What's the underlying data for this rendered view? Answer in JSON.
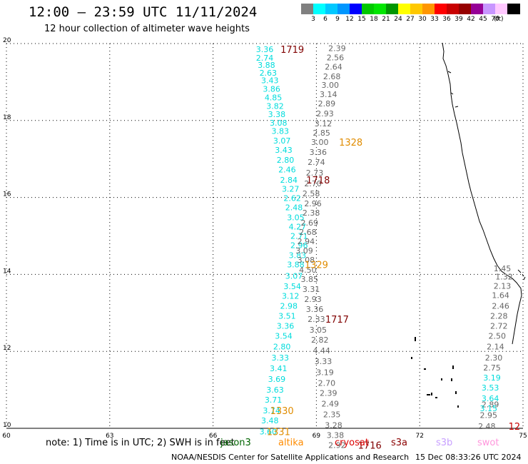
{
  "header": {
    "title": "12:00 – 23:59 UTC 11/11/2024",
    "subtitle": "12 hour collection of altimeter wave heights"
  },
  "legend": {
    "unit": "(ft)",
    "items": [
      {
        "label": "",
        "color": "#808080"
      },
      {
        "label": "3",
        "color": "#00ffff"
      },
      {
        "label": "6",
        "color": "#00c8ff"
      },
      {
        "label": "9",
        "color": "#0096ff"
      },
      {
        "label": "12",
        "color": "#0000ff"
      },
      {
        "label": "15",
        "color": "#00c800"
      },
      {
        "label": "18",
        "color": "#00e600"
      },
      {
        "label": "21",
        "color": "#009600"
      },
      {
        "label": "24",
        "color": "#ffff00"
      },
      {
        "label": "27",
        "color": "#ffc800"
      },
      {
        "label": "30",
        "color": "#ff9600"
      },
      {
        "label": "33",
        "color": "#ff0000"
      },
      {
        "label": "36",
        "color": "#c80000"
      },
      {
        "label": "39",
        "color": "#960000"
      },
      {
        "label": "42",
        "color": "#960096"
      },
      {
        "label": "45",
        "color": "#c896ff"
      },
      {
        "label": "70",
        "color": "#ffc8ff"
      },
      {
        "label": "",
        "color": "#000000"
      }
    ]
  },
  "footer": {
    "note": "note: 1) Time is in UTC; 2) SWH is in feet",
    "satellites": [
      {
        "name": "jason3",
        "color": "#006400"
      },
      {
        "name": "altika",
        "color": "#ff8c00"
      },
      {
        "name": "cryosat",
        "color": "#dc0000"
      },
      {
        "name": "s3a",
        "color": "#8b0000"
      },
      {
        "name": "s3b",
        "color": "#c8a0ff"
      },
      {
        "name": "swot",
        "color": "#ff96dc"
      }
    ],
    "credit": "NOAA/NESDIS Center for Satellite Applications and Research",
    "timestamp": "15 Dec 08:33:26 UTC 2024"
  },
  "chart_data": {
    "type": "scatter",
    "xlim": [
      60,
      75
    ],
    "ylim": [
      10,
      20
    ],
    "x_ticks": [
      "60",
      "63",
      "66",
      "69",
      "72",
      "75"
    ],
    "y_ticks": [
      "10",
      "12",
      "14",
      "16",
      "18",
      "20"
    ],
    "grid": true,
    "series": [
      {
        "track": "s3a",
        "color": "#00dcdc",
        "points": [
          {
            "x": 67.5,
            "y": 19.85,
            "v": "3.36"
          },
          {
            "x": 67.5,
            "y": 19.63,
            "v": "2.74"
          },
          {
            "x": 67.55,
            "y": 19.44,
            "v": "3.88"
          },
          {
            "x": 67.6,
            "y": 19.24,
            "v": "2.63"
          },
          {
            "x": 67.65,
            "y": 19.04,
            "v": "3.43"
          },
          {
            "x": 67.7,
            "y": 18.82,
            "v": "3.86"
          },
          {
            "x": 67.75,
            "y": 18.6,
            "v": "4.85"
          },
          {
            "x": 67.8,
            "y": 18.38,
            "v": "3.82"
          },
          {
            "x": 67.85,
            "y": 18.16,
            "v": "3.38"
          },
          {
            "x": 67.9,
            "y": 17.94,
            "v": "3.08"
          },
          {
            "x": 67.95,
            "y": 17.73,
            "v": "3.83"
          },
          {
            "x": 68.0,
            "y": 17.48,
            "v": "3.07"
          },
          {
            "x": 68.05,
            "y": 17.24,
            "v": "3.43"
          },
          {
            "x": 68.1,
            "y": 16.98,
            "v": "2.80"
          },
          {
            "x": 68.15,
            "y": 16.73,
            "v": "2.46"
          },
          {
            "x": 68.2,
            "y": 16.46,
            "v": "2.84"
          },
          {
            "x": 68.25,
            "y": 16.22,
            "v": "3.27"
          },
          {
            "x": 68.3,
            "y": 15.98,
            "v": "2.62"
          },
          {
            "x": 68.35,
            "y": 15.74,
            "v": "2.48"
          },
          {
            "x": 68.4,
            "y": 15.48,
            "v": "3.05"
          },
          {
            "x": 68.45,
            "y": 15.24,
            "v": "4.27"
          },
          {
            "x": 68.5,
            "y": 15.0,
            "v": "2.71"
          },
          {
            "x": 68.5,
            "y": 14.76,
            "v": "2.96"
          },
          {
            "x": 68.45,
            "y": 14.5,
            "v": "3.83"
          },
          {
            "x": 68.4,
            "y": 14.26,
            "v": "3.88"
          },
          {
            "x": 68.35,
            "y": 13.96,
            "v": "3.07"
          },
          {
            "x": 68.3,
            "y": 13.69,
            "v": "3.54"
          },
          {
            "x": 68.25,
            "y": 13.44,
            "v": "3.12"
          },
          {
            "x": 68.2,
            "y": 13.18,
            "v": "2.98"
          },
          {
            "x": 68.15,
            "y": 12.92,
            "v": "3.51"
          },
          {
            "x": 68.1,
            "y": 12.66,
            "v": "3.36"
          },
          {
            "x": 68.05,
            "y": 12.4,
            "v": "3.54"
          },
          {
            "x": 68.0,
            "y": 12.12,
            "v": "2.80"
          },
          {
            "x": 67.95,
            "y": 11.84,
            "v": "3.33"
          },
          {
            "x": 67.9,
            "y": 11.56,
            "v": "3.41"
          },
          {
            "x": 67.85,
            "y": 11.28,
            "v": "3.69"
          },
          {
            "x": 67.8,
            "y": 11.0,
            "v": "3.63"
          },
          {
            "x": 67.75,
            "y": 10.74,
            "v": "3.71"
          },
          {
            "x": 67.7,
            "y": 10.46,
            "v": "3.74"
          },
          {
            "x": 67.65,
            "y": 10.2,
            "v": "3.48"
          },
          {
            "x": 67.6,
            "y": 9.92,
            "v": "3.60"
          }
        ]
      },
      {
        "track": "s3a",
        "color": "#666666",
        "points": [
          {
            "x": 69.6,
            "y": 19.88,
            "v": "2.39"
          },
          {
            "x": 69.55,
            "y": 19.64,
            "v": "2.56"
          },
          {
            "x": 69.5,
            "y": 19.4,
            "v": "2.64"
          },
          {
            "x": 69.45,
            "y": 19.15,
            "v": "2.68"
          },
          {
            "x": 69.4,
            "y": 18.92,
            "v": "3.00"
          },
          {
            "x": 69.35,
            "y": 18.68,
            "v": "3.14"
          },
          {
            "x": 69.3,
            "y": 18.44,
            "v": "2.89"
          },
          {
            "x": 69.25,
            "y": 18.18,
            "v": "2.93"
          },
          {
            "x": 69.2,
            "y": 17.92,
            "v": "3.12"
          },
          {
            "x": 69.15,
            "y": 17.68,
            "v": "2.85"
          },
          {
            "x": 69.1,
            "y": 17.44,
            "v": "3.00"
          },
          {
            "x": 69.05,
            "y": 17.18,
            "v": "3.36"
          },
          {
            "x": 69.0,
            "y": 16.92,
            "v": "2.74"
          },
          {
            "x": 68.95,
            "y": 16.64,
            "v": "2.73"
          },
          {
            "x": 68.9,
            "y": 16.36,
            "v": "2.70"
          },
          {
            "x": 68.85,
            "y": 16.1,
            "v": "2.58"
          },
          {
            "x": 68.9,
            "y": 15.84,
            "v": "2.96"
          },
          {
            "x": 68.85,
            "y": 15.6,
            "v": "2.38"
          },
          {
            "x": 68.8,
            "y": 15.34,
            "v": "2.69"
          },
          {
            "x": 68.75,
            "y": 15.1,
            "v": "2.68"
          },
          {
            "x": 68.7,
            "y": 14.86,
            "v": "2.94"
          },
          {
            "x": 68.65,
            "y": 14.62,
            "v": "3.09"
          },
          {
            "x": 68.7,
            "y": 14.38,
            "v": "3.08"
          },
          {
            "x": 68.75,
            "y": 14.12,
            "v": "4.50"
          },
          {
            "x": 68.8,
            "y": 13.88,
            "v": "3.85"
          },
          {
            "x": 68.85,
            "y": 13.62,
            "v": "3.31"
          },
          {
            "x": 68.9,
            "y": 13.36,
            "v": "2.93"
          },
          {
            "x": 68.95,
            "y": 13.1,
            "v": "3.36"
          },
          {
            "x": 69.0,
            "y": 12.84,
            "v": "2.33"
          },
          {
            "x": 69.05,
            "y": 12.56,
            "v": "3.05"
          },
          {
            "x": 69.1,
            "y": 12.3,
            "v": "2.82"
          },
          {
            "x": 69.15,
            "y": 12.02,
            "v": "4.44"
          },
          {
            "x": 69.2,
            "y": 11.74,
            "v": "3.33"
          },
          {
            "x": 69.25,
            "y": 11.46,
            "v": "3.19"
          },
          {
            "x": 69.3,
            "y": 11.18,
            "v": "2.70"
          },
          {
            "x": 69.35,
            "y": 10.92,
            "v": "2.39"
          },
          {
            "x": 69.4,
            "y": 10.64,
            "v": "2.49"
          },
          {
            "x": 69.45,
            "y": 10.36,
            "v": "2.35"
          },
          {
            "x": 69.5,
            "y": 10.08,
            "v": "3.28"
          },
          {
            "x": 69.55,
            "y": 9.82,
            "v": "3.38"
          },
          {
            "x": 69.6,
            "y": 9.56,
            "v": "2.92"
          }
        ]
      },
      {
        "track": "east",
        "color": "#666666",
        "points": [
          {
            "x": 74.4,
            "y": 14.16,
            "v": "1.45"
          },
          {
            "x": 74.45,
            "y": 13.94,
            "v": "1.32"
          },
          {
            "x": 74.4,
            "y": 13.7,
            "v": "2.13"
          },
          {
            "x": 74.35,
            "y": 13.46,
            "v": "1.64"
          },
          {
            "x": 74.35,
            "y": 13.18,
            "v": "2.46"
          },
          {
            "x": 74.3,
            "y": 12.92,
            "v": "2.28"
          },
          {
            "x": 74.3,
            "y": 12.66,
            "v": "2.72"
          },
          {
            "x": 74.25,
            "y": 12.4,
            "v": "2.50"
          },
          {
            "x": 74.2,
            "y": 12.12,
            "v": "2.14"
          },
          {
            "x": 74.15,
            "y": 11.84,
            "v": "2.30"
          },
          {
            "x": 74.1,
            "y": 11.58,
            "v": "2.75"
          },
          {
            "x": 74.05,
            "y": 10.62,
            "v": "2.89"
          },
          {
            "x": 74.0,
            "y": 10.34,
            "v": "2.95"
          },
          {
            "x": 73.95,
            "y": 10.06,
            "v": "2.48"
          }
        ]
      },
      {
        "track": "east",
        "color": "#00dcdc",
        "points": [
          {
            "x": 74.1,
            "y": 11.32,
            "v": "3.19"
          },
          {
            "x": 74.05,
            "y": 11.06,
            "v": "3.53"
          },
          {
            "x": 74.05,
            "y": 10.78,
            "v": "3.64"
          },
          {
            "x": 74.0,
            "y": 10.52,
            "v": "3.15"
          }
        ]
      }
    ],
    "time_labels": [
      {
        "x": 68.3,
        "y": 19.85,
        "v": "1719",
        "color": "#800000"
      },
      {
        "x": 70.0,
        "y": 17.44,
        "v": "1328",
        "color": "#e08c00"
      },
      {
        "x": 69.05,
        "y": 16.46,
        "v": "1718",
        "color": "#800000"
      },
      {
        "x": 69.0,
        "y": 14.26,
        "v": "1329",
        "color": "#e08c00"
      },
      {
        "x": 69.6,
        "y": 12.84,
        "v": "1717",
        "color": "#800000"
      },
      {
        "x": 68.0,
        "y": 10.46,
        "v": "1330",
        "color": "#e08c00"
      },
      {
        "x": 67.9,
        "y": 9.92,
        "v": "1331",
        "color": "#e08c00"
      },
      {
        "x": 70.55,
        "y": 9.56,
        "v": "1716",
        "color": "#800000"
      },
      {
        "x": 74.75,
        "y": 10.06,
        "v": "12",
        "color": "#c80000"
      }
    ]
  }
}
